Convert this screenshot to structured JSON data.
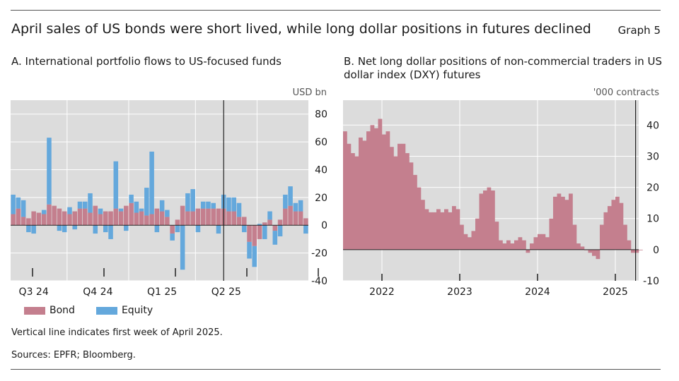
{
  "header": {
    "title": "April sales of US bonds were short lived, while long dollar positions in futures declined",
    "graph_label": "Graph 5"
  },
  "footer": {
    "note": "Vertical line indicates first week of April 2025.",
    "sources": "Sources: EPFR; Bloomberg."
  },
  "colors": {
    "plot_bg": "#dcdcdc",
    "bond": "#c47f8e",
    "equity": "#64a8dc",
    "grid": "#ffffff",
    "axis": "#222222"
  },
  "chart_data": [
    {
      "type": "bar",
      "title": "A. International portfolio flows to US-focused funds",
      "unit": "USD bn",
      "ylim": [
        -40,
        90
      ],
      "yticks": [
        -40,
        -20,
        0,
        20,
        40,
        60,
        80
      ],
      "tick_labels": [
        "Q3 24",
        "Q4 24",
        "Q1 25",
        "Q2 25"
      ],
      "tick_label_positions": [
        4.5,
        17,
        29.5,
        42
      ],
      "vline_at": 41.5,
      "stacked": true,
      "series": [
        {
          "name": "Bond",
          "values": [
            8,
            12,
            6,
            5,
            10,
            9,
            8,
            15,
            14,
            12,
            10,
            8,
            10,
            12,
            12,
            9,
            14,
            8,
            10,
            10,
            12,
            10,
            14,
            16,
            9,
            10,
            7,
            8,
            12,
            10,
            6,
            -6,
            4,
            14,
            10,
            10,
            12,
            12,
            12,
            12,
            12,
            12,
            10,
            10,
            6,
            6,
            -12,
            -15,
            -10,
            2,
            4,
            -4,
            4,
            12,
            14,
            10,
            10,
            5
          ]
        },
        {
          "name": "Equity",
          "values": [
            14,
            8,
            12,
            -5,
            -6,
            0,
            3,
            48,
            0,
            -4,
            -5,
            5,
            -3,
            5,
            5,
            14,
            -6,
            4,
            -5,
            -10,
            34,
            2,
            -4,
            6,
            8,
            2,
            20,
            45,
            -5,
            8,
            5,
            -5,
            -5,
            -32,
            13,
            16,
            -5,
            5,
            5,
            4,
            -6,
            10,
            10,
            10,
            10,
            -5,
            -12,
            -15,
            1,
            -10,
            6,
            -10,
            -8,
            10,
            14,
            6,
            8,
            -6
          ]
        }
      ]
    },
    {
      "type": "area",
      "title": "B. Net long dollar positions of non-commercial traders in US dollar index (DXY) futures",
      "unit": "'000 contracts",
      "ylim": [
        -10,
        48
      ],
      "yticks": [
        -10,
        0,
        10,
        20,
        30,
        40
      ],
      "x_range": [
        2021.5,
        2025.3
      ],
      "tick_labels": [
        "2022",
        "2023",
        "2024",
        "2025"
      ],
      "vline_at": 2025.26,
      "series": [
        {
          "name": "",
          "x": [
            2021.5,
            2021.55,
            2021.6,
            2021.65,
            2021.7,
            2021.75,
            2021.8,
            2021.85,
            2021.9,
            2021.95,
            2022.0,
            2022.05,
            2022.1,
            2022.15,
            2022.2,
            2022.25,
            2022.3,
            2022.35,
            2022.4,
            2022.45,
            2022.5,
            2022.55,
            2022.6,
            2022.65,
            2022.7,
            2022.75,
            2022.8,
            2022.85,
            2022.9,
            2022.95,
            2023.0,
            2023.05,
            2023.1,
            2023.15,
            2023.2,
            2023.25,
            2023.3,
            2023.35,
            2023.4,
            2023.45,
            2023.5,
            2023.55,
            2023.6,
            2023.65,
            2023.7,
            2023.75,
            2023.8,
            2023.85,
            2023.9,
            2023.95,
            2024.0,
            2024.05,
            2024.1,
            2024.15,
            2024.2,
            2024.25,
            2024.3,
            2024.35,
            2024.4,
            2024.45,
            2024.5,
            2024.55,
            2024.6,
            2024.65,
            2024.7,
            2024.75,
            2024.8,
            2024.85,
            2024.9,
            2024.95,
            2025.0,
            2025.05,
            2025.1,
            2025.15,
            2025.2,
            2025.25,
            2025.3
          ],
          "y": [
            38,
            34,
            31,
            30,
            36,
            35,
            38,
            40,
            39,
            42,
            37,
            38,
            33,
            30,
            34,
            34,
            31,
            28,
            24,
            20,
            16,
            13,
            12,
            12,
            13,
            12,
            13,
            12,
            14,
            13,
            8,
            5,
            4,
            6,
            10,
            18,
            19,
            20,
            19,
            9,
            3,
            2,
            3,
            2,
            3,
            4,
            3,
            -1,
            2,
            4,
            5,
            5,
            4,
            10,
            17,
            18,
            17,
            16,
            18,
            8,
            2,
            1,
            0,
            -1,
            -2,
            -3,
            8,
            12,
            14,
            16,
            17,
            15,
            8,
            3,
            -1,
            -1,
            0
          ]
        }
      ]
    }
  ]
}
